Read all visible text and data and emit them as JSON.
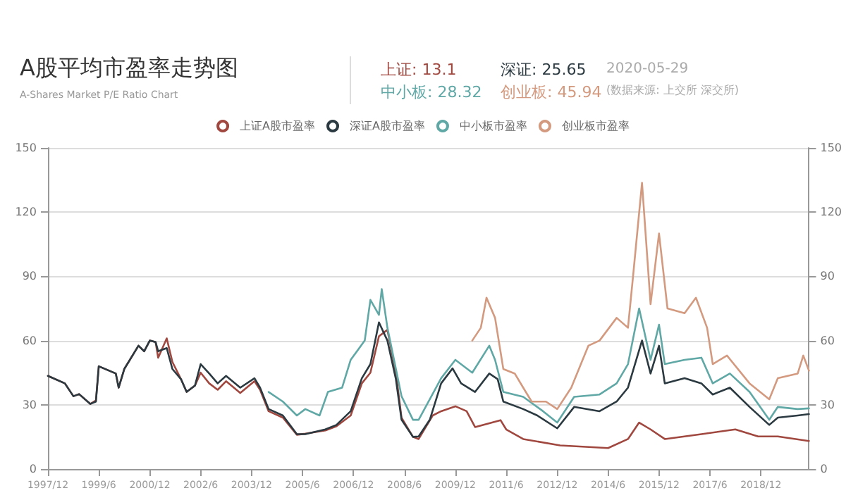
{
  "chart_data": {
    "type": "line",
    "title": "A股平均市盈率走势图",
    "subtitle": "A-Shares Market P/E Ratio Chart",
    "annotations": [
      "上证: 13.1",
      "深证: 25.65",
      "中小板: 28.32",
      "创业板: 45.94",
      "2020-05-29",
      "(数据来源: 上交所 深交所)"
    ],
    "xlim": [
      "1997-12",
      "2020-05"
    ],
    "xticks": [
      {
        "value": "1997-12",
        "label": "1997/12"
      },
      {
        "value": "1999-06",
        "label": "1999/6"
      },
      {
        "value": "2000-12",
        "label": "2000/12"
      },
      {
        "value": "2002-06",
        "label": "2002/6"
      },
      {
        "value": "2003-12",
        "label": "2003/12"
      },
      {
        "value": "2005-06",
        "label": "2005/6"
      },
      {
        "value": "2006-12",
        "label": "2006/12"
      },
      {
        "value": "2008-06",
        "label": "2008/6"
      },
      {
        "value": "2009-12",
        "label": "2009/12"
      },
      {
        "value": "2011-06",
        "label": "2011/6"
      },
      {
        "value": "2012-12",
        "label": "2012/12"
      },
      {
        "value": "2014-06",
        "label": "2014/6"
      },
      {
        "value": "2015-12",
        "label": "2015/12"
      },
      {
        "value": "2017-06",
        "label": "2017/6"
      },
      {
        "value": "2018-12",
        "label": "2018/12"
      }
    ],
    "ylim": [
      0,
      150
    ],
    "yticks": [
      0,
      30,
      60,
      90,
      120,
      150
    ],
    "y2lim": [
      0,
      150
    ],
    "y2ticks": [
      0,
      30,
      60,
      90,
      120,
      150
    ],
    "grid": "y",
    "legend": "top",
    "marker": "none",
    "line_style": "solid",
    "series": [
      {
        "name": "上证A股市盈率",
        "color": "#a0483f",
        "x": [
          "1997-12",
          "1998-06",
          "1998-09",
          "1998-11",
          "1999-03",
          "1999-05",
          "1999-06",
          "1999-12",
          "2000-01",
          "2000-03",
          "2000-08",
          "2000-10",
          "2000-12",
          "2001-02",
          "2001-03",
          "2001-06",
          "2001-08",
          "2001-11",
          "2002-01",
          "2002-04",
          "2002-06",
          "2002-09",
          "2002-12",
          "2003-03",
          "2003-08",
          "2004-01",
          "2004-03",
          "2004-06",
          "2004-11",
          "2005-04",
          "2005-07",
          "2006-02",
          "2006-06",
          "2006-11",
          "2007-03",
          "2007-06",
          "2007-09",
          "2007-12",
          "2008-03",
          "2008-05",
          "2008-09",
          "2008-11",
          "2009-04",
          "2009-07",
          "2009-12",
          "2010-04",
          "2010-07",
          "2011-04",
          "2011-06",
          "2011-12",
          "2013-01",
          "2014-06",
          "2015-01",
          "2015-05",
          "2015-09",
          "2016-02",
          "2017-03",
          "2018-03",
          "2018-11",
          "2019-06",
          "2020-05"
        ],
        "values": [
          43.5,
          40,
          34,
          35,
          30.4,
          32,
          48,
          44.6,
          38,
          46.7,
          57.6,
          55,
          60,
          59.3,
          52,
          61,
          50,
          42,
          36,
          39,
          45,
          40,
          37,
          41,
          35.5,
          41,
          37,
          27,
          24,
          16,
          16.5,
          18,
          20,
          25,
          40,
          45,
          62,
          65,
          45,
          24,
          15,
          14,
          25,
          27,
          29.3,
          27,
          19.6,
          22.8,
          18.5,
          14,
          11,
          9.8,
          14,
          21.7,
          18.5,
          14,
          16.3,
          18.5,
          15.2,
          15.2,
          13.1
        ]
      },
      {
        "name": "深证A股市盈率",
        "color": "#2b3940",
        "x": [
          "1997-12",
          "1998-06",
          "1998-09",
          "1998-11",
          "1999-03",
          "1999-05",
          "1999-06",
          "1999-12",
          "2000-01",
          "2000-03",
          "2000-08",
          "2000-10",
          "2000-12",
          "2001-02",
          "2001-03",
          "2001-06",
          "2001-08",
          "2001-11",
          "2002-01",
          "2002-04",
          "2002-06",
          "2002-09",
          "2002-12",
          "2003-03",
          "2003-08",
          "2004-01",
          "2004-03",
          "2004-06",
          "2004-11",
          "2005-04",
          "2005-07",
          "2006-02",
          "2006-06",
          "2006-11",
          "2007-03",
          "2007-06",
          "2007-09",
          "2007-12",
          "2008-03",
          "2008-05",
          "2008-09",
          "2008-11",
          "2009-03",
          "2009-07",
          "2009-11",
          "2010-02",
          "2010-07",
          "2010-12",
          "2011-03",
          "2011-05",
          "2011-12",
          "2012-05",
          "2012-12",
          "2013-06",
          "2014-03",
          "2014-09",
          "2015-01",
          "2015-06",
          "2015-09",
          "2015-12",
          "2016-02",
          "2016-09",
          "2017-03",
          "2017-07",
          "2018-01",
          "2018-08",
          "2019-03",
          "2019-06",
          "2020-01",
          "2020-05"
        ],
        "values": [
          43.5,
          40,
          34,
          35,
          30.4,
          31.5,
          48,
          44.6,
          38,
          46.7,
          57.6,
          55,
          60,
          59.3,
          55,
          56.5,
          46.7,
          42,
          36,
          39,
          49,
          44.6,
          40,
          43.5,
          38,
          42.4,
          38,
          28,
          25,
          16.3,
          16.3,
          18.5,
          20.6,
          27,
          42.4,
          49,
          68.5,
          60,
          42,
          23,
          15,
          15.2,
          23,
          40,
          47,
          40,
          36,
          44.6,
          42,
          31.5,
          28,
          25,
          19,
          29,
          27,
          31.5,
          38,
          60,
          44.6,
          57.6,
          40,
          42.4,
          40,
          34.8,
          38,
          29,
          20.6,
          24,
          25,
          25.65
        ]
      },
      {
        "name": "中小板市盈率",
        "color": "#5fa8a6",
        "x": [
          "2004-06",
          "2004-11",
          "2005-04",
          "2005-07",
          "2005-12",
          "2006-03",
          "2006-08",
          "2006-11",
          "2007-04",
          "2007-06",
          "2007-09",
          "2007-10",
          "2007-12",
          "2008-05",
          "2008-09",
          "2008-11",
          "2009-07",
          "2009-12",
          "2010-06",
          "2010-12",
          "2011-02",
          "2011-05",
          "2011-12",
          "2012-07",
          "2012-12",
          "2013-06",
          "2014-03",
          "2014-09",
          "2015-01",
          "2015-05",
          "2015-09",
          "2015-12",
          "2016-02",
          "2016-09",
          "2017-03",
          "2017-07",
          "2018-01",
          "2018-08",
          "2019-03",
          "2019-06",
          "2020-01",
          "2020-05"
        ],
        "values": [
          36,
          31.5,
          25,
          28,
          25,
          36,
          38,
          51,
          60,
          79,
          72,
          84,
          66,
          34,
          23,
          23,
          42.4,
          51,
          45,
          57.6,
          51,
          36,
          33.7,
          27,
          21.7,
          33.7,
          34.8,
          40,
          49,
          75,
          51,
          67.4,
          49,
          51,
          52,
          40,
          44.6,
          36,
          23,
          29,
          28,
          28.32
        ]
      },
      {
        "name": "创业板市盈率",
        "color": "#d49a7f",
        "x": [
          "2010-06",
          "2010-09",
          "2010-11",
          "2011-02",
          "2011-05",
          "2011-09",
          "2011-12",
          "2012-03",
          "2012-08",
          "2012-12",
          "2013-05",
          "2013-11",
          "2014-03",
          "2014-09",
          "2015-01",
          "2015-03",
          "2015-06",
          "2015-09",
          "2015-12",
          "2016-03",
          "2016-09",
          "2017-01",
          "2017-05",
          "2017-07",
          "2017-12",
          "2018-08",
          "2019-03",
          "2019-06",
          "2020-01",
          "2020-03",
          "2020-05"
        ],
        "values": [
          60,
          66,
          80,
          70.6,
          46.7,
          44.6,
          38,
          31.5,
          31.5,
          28,
          38,
          57.6,
          60,
          70.6,
          66,
          92,
          133.7,
          77,
          110,
          75,
          72.8,
          80,
          66,
          49,
          53,
          40,
          32.6,
          42.4,
          44.6,
          53,
          45.94
        ]
      }
    ]
  }
}
